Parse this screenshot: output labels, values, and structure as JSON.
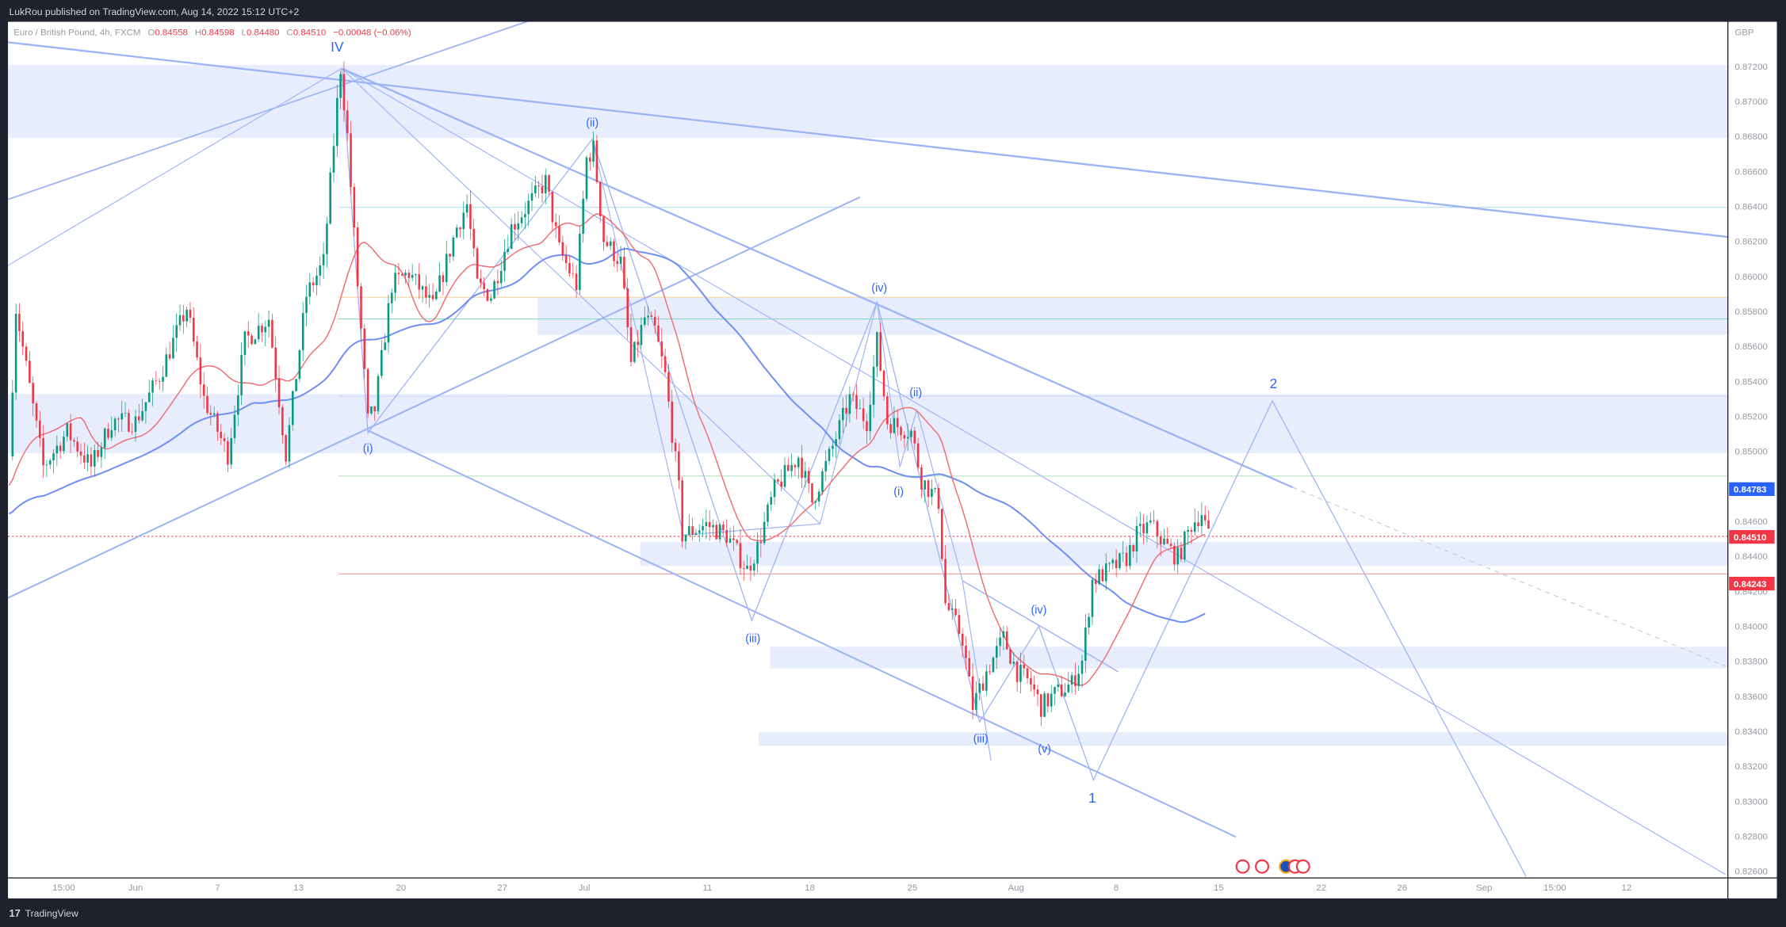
{
  "header": {
    "published": "LukRou published on TradingView.com, Aug 14, 2022 15:12 UTC+2",
    "symbol": "Euro / British Pound, 4h, FXCM",
    "o_label": "O",
    "o": "0.84558",
    "h_label": "H",
    "h": "0.84598",
    "l_label": "L",
    "l": "0.84480",
    "c_label": "C",
    "c": "0.84510",
    "change": "−0.00048 (−0.06%)"
  },
  "footer": {
    "brand": "TradingView"
  },
  "colors": {
    "up": "#089981",
    "down": "#f23645",
    "ema": "#f06b72",
    "sma": "#6f8ff5",
    "drawing": "#9db3f5",
    "zone": "#e3eafd",
    "last_price": "#f23645",
    "tag_blue": "#2962ff"
  },
  "chart_data": {
    "type": "candlestick",
    "currency": "GBP",
    "ylim": [
      0.826,
      0.873
    ],
    "y_ticks": [
      "0.87200",
      "0.87000",
      "0.86800",
      "0.86600",
      "0.86400",
      "0.86200",
      "0.86000",
      "0.85800",
      "0.85600",
      "0.85400",
      "0.85200",
      "0.85000",
      "0.84600",
      "0.84400",
      "0.84200",
      "0.84000",
      "0.83800",
      "0.83600",
      "0.83400",
      "0.83200",
      "0.83000",
      "0.82800",
      "0.82600"
    ],
    "x_ticks": [
      "15:00",
      "Jun",
      "7",
      "13",
      "20",
      "27",
      "Jul",
      "11",
      "18",
      "25",
      "Aug",
      "8",
      "15",
      "22",
      "26",
      "Sep",
      "15:00",
      "12"
    ],
    "price_tags": [
      {
        "value": "0.84783",
        "color": "#2962ff"
      },
      {
        "value": "0.84510",
        "color": "#f23645"
      },
      {
        "value": "0.84243",
        "color": "#f23645"
      }
    ],
    "price_path": [
      {
        "t": "05-23 20:00",
        "p": 0.8497
      },
      {
        "t": "05-24 04:00",
        "p": 0.8582
      },
      {
        "t": "05-25 12:00",
        "p": 0.8491
      },
      {
        "t": "05-26 16:00",
        "p": 0.8511
      },
      {
        "t": "05-27 20:00",
        "p": 0.8491
      },
      {
        "t": "05-30 20:00",
        "p": 0.8517
      },
      {
        "t": "06-01 00:00",
        "p": 0.8517
      },
      {
        "t": "06-02 04:00",
        "p": 0.8543
      },
      {
        "t": "06-03 12:00",
        "p": 0.8582
      },
      {
        "t": "06-06 08:00",
        "p": 0.853
      },
      {
        "t": "06-07 12:00",
        "p": 0.8498
      },
      {
        "t": "06-08 08:00",
        "p": 0.8563
      },
      {
        "t": "06-09 12:00",
        "p": 0.8576
      },
      {
        "t": "06-10 08:00",
        "p": 0.8498
      },
      {
        "t": "06-13 08:00",
        "p": 0.8589
      },
      {
        "t": "06-14 04:00",
        "p": 0.8608
      },
      {
        "t": "06-14 20:00",
        "p": 0.8699
      },
      {
        "t": "06-15 00:00",
        "p": 0.8719
      },
      {
        "t": "06-15 08:00",
        "p": 0.868
      },
      {
        "t": "06-15 20:00",
        "p": 0.8595
      },
      {
        "t": "06-16 08:00",
        "p": 0.8517
      },
      {
        "t": "06-16 16:00",
        "p": 0.8524
      },
      {
        "t": "06-17 12:00",
        "p": 0.8595
      },
      {
        "t": "06-20 08:00",
        "p": 0.8602
      },
      {
        "t": "06-21 12:00",
        "p": 0.8582
      },
      {
        "t": "06-22 16:00",
        "p": 0.8628
      },
      {
        "t": "06-23 04:00",
        "p": 0.8641
      },
      {
        "t": "06-23 16:00",
        "p": 0.8595
      },
      {
        "t": "06-24 08:00",
        "p": 0.8589
      },
      {
        "t": "06-27 08:00",
        "p": 0.8628
      },
      {
        "t": "06-28 04:00",
        "p": 0.8641
      },
      {
        "t": "06-29 00:00",
        "p": 0.8654
      },
      {
        "t": "06-29 16:00",
        "p": 0.8615
      },
      {
        "t": "06-30 12:00",
        "p": 0.8595
      },
      {
        "t": "07-01 00:00",
        "p": 0.8667
      },
      {
        "t": "07-01 08:00",
        "p": 0.8673
      },
      {
        "t": "07-01 20:00",
        "p": 0.8621
      },
      {
        "t": "07-04 16:00",
        "p": 0.8608
      },
      {
        "t": "07-05 04:00",
        "p": 0.855
      },
      {
        "t": "07-05 20:00",
        "p": 0.8576
      },
      {
        "t": "07-06 08:00",
        "p": 0.8569
      },
      {
        "t": "07-06 20:00",
        "p": 0.8543
      },
      {
        "t": "07-07 12:00",
        "p": 0.8478
      },
      {
        "t": "07-07 16:00",
        "p": 0.8452
      },
      {
        "t": "07-08 20:00",
        "p": 0.8458
      },
      {
        "t": "07-11 20:00",
        "p": 0.8452
      },
      {
        "t": "07-12 20:00",
        "p": 0.8432
      },
      {
        "t": "07-13 08:00",
        "p": 0.8445
      },
      {
        "t": "07-14 04:00",
        "p": 0.8478
      },
      {
        "t": "07-15 08:00",
        "p": 0.8497
      },
      {
        "t": "07-18 00:00",
        "p": 0.8471
      },
      {
        "t": "07-18 20:00",
        "p": 0.8497
      },
      {
        "t": "07-19 20:00",
        "p": 0.853
      },
      {
        "t": "07-20 16:00",
        "p": 0.8517
      },
      {
        "t": "07-21 04:00",
        "p": 0.8563
      },
      {
        "t": "07-21 16:00",
        "p": 0.8517
      },
      {
        "t": "07-22 20:00",
        "p": 0.8511
      },
      {
        "t": "07-25 08:00",
        "p": 0.8484
      },
      {
        "t": "07-26 04:00",
        "p": 0.8471
      },
      {
        "t": "07-26 12:00",
        "p": 0.8413
      },
      {
        "t": "07-27 08:00",
        "p": 0.8393
      },
      {
        "t": "07-27 20:00",
        "p": 0.8354
      },
      {
        "t": "07-28 12:00",
        "p": 0.8374
      },
      {
        "t": "07-29 08:00",
        "p": 0.8393
      },
      {
        "t": "08-01 00:00",
        "p": 0.8374
      },
      {
        "t": "08-01 16:00",
        "p": 0.8367
      },
      {
        "t": "08-02 04:00",
        "p": 0.8354
      },
      {
        "t": "08-02 20:00",
        "p": 0.8361
      },
      {
        "t": "08-03 16:00",
        "p": 0.8367
      },
      {
        "t": "08-04 04:00",
        "p": 0.838
      },
      {
        "t": "08-04 16:00",
        "p": 0.8426
      },
      {
        "t": "08-05 12:00",
        "p": 0.8432
      },
      {
        "t": "08-08 08:00",
        "p": 0.8439
      },
      {
        "t": "08-08 20:00",
        "p": 0.8452
      },
      {
        "t": "08-09 12:00",
        "p": 0.8458
      },
      {
        "t": "08-10 08:00",
        "p": 0.8445
      },
      {
        "t": "08-10 20:00",
        "p": 0.8439
      },
      {
        "t": "08-11 12:00",
        "p": 0.8458
      },
      {
        "t": "08-12 00:00",
        "p": 0.8465
      },
      {
        "t": "08-12 08:00",
        "p": 0.8451
      }
    ],
    "wave_labels": [
      "IV",
      "(i)",
      "(ii)",
      "(iii)",
      "(iv)",
      "(i)",
      "(ii)",
      "(iii)",
      "(iv)",
      "(v)",
      "1",
      "2"
    ]
  }
}
